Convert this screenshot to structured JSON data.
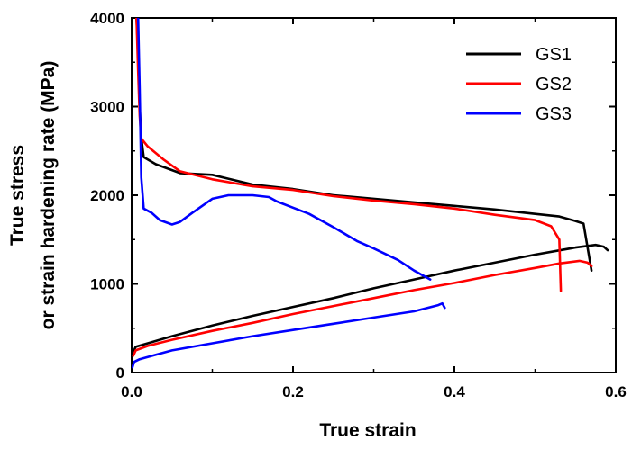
{
  "chart_data": {
    "type": "line",
    "xlabel": "True strain",
    "ylabel_line1": "True stress",
    "ylabel_line2": "or strain hardening rate (MPa)",
    "xlim": [
      0.0,
      0.6
    ],
    "ylim": [
      0,
      4000
    ],
    "x_ticks": [
      "0.0",
      "0.2",
      "0.4",
      "0.6"
    ],
    "y_ticks": [
      "0",
      "1000",
      "2000",
      "3000",
      "4000"
    ],
    "x_tick_values": [
      0.0,
      0.2,
      0.4,
      0.6
    ],
    "y_tick_values": [
      0,
      1000,
      2000,
      3000,
      4000
    ],
    "grid": false,
    "legend_position": "top-right",
    "series": [
      {
        "name": "GS1",
        "color": "#000000",
        "stress_curve": [
          [
            0.002,
            230
          ],
          [
            0.005,
            290
          ],
          [
            0.02,
            330
          ],
          [
            0.05,
            410
          ],
          [
            0.1,
            530
          ],
          [
            0.15,
            640
          ],
          [
            0.2,
            740
          ],
          [
            0.25,
            840
          ],
          [
            0.3,
            950
          ],
          [
            0.35,
            1050
          ],
          [
            0.4,
            1150
          ],
          [
            0.45,
            1240
          ],
          [
            0.5,
            1330
          ],
          [
            0.55,
            1410
          ],
          [
            0.575,
            1440
          ],
          [
            0.585,
            1420
          ],
          [
            0.59,
            1380
          ]
        ],
        "hardening_curve": [
          [
            0.006,
            4000
          ],
          [
            0.008,
            3600
          ],
          [
            0.01,
            3000
          ],
          [
            0.012,
            2650
          ],
          [
            0.015,
            2430
          ],
          [
            0.03,
            2350
          ],
          [
            0.06,
            2250
          ],
          [
            0.1,
            2230
          ],
          [
            0.15,
            2120
          ],
          [
            0.2,
            2070
          ],
          [
            0.25,
            2000
          ],
          [
            0.3,
            1960
          ],
          [
            0.35,
            1920
          ],
          [
            0.4,
            1880
          ],
          [
            0.45,
            1840
          ],
          [
            0.5,
            1790
          ],
          [
            0.53,
            1760
          ],
          [
            0.55,
            1710
          ],
          [
            0.56,
            1680
          ],
          [
            0.57,
            1150
          ]
        ]
      },
      {
        "name": "GS2",
        "color": "#ff0000",
        "stress_curve": [
          [
            0.002,
            190
          ],
          [
            0.005,
            250
          ],
          [
            0.02,
            300
          ],
          [
            0.05,
            370
          ],
          [
            0.1,
            470
          ],
          [
            0.15,
            560
          ],
          [
            0.2,
            660
          ],
          [
            0.25,
            750
          ],
          [
            0.3,
            840
          ],
          [
            0.35,
            930
          ],
          [
            0.4,
            1010
          ],
          [
            0.45,
            1100
          ],
          [
            0.5,
            1180
          ],
          [
            0.53,
            1230
          ],
          [
            0.555,
            1260
          ],
          [
            0.565,
            1240
          ],
          [
            0.57,
            1200
          ]
        ],
        "hardening_curve": [
          [
            0.006,
            4000
          ],
          [
            0.008,
            3400
          ],
          [
            0.01,
            2900
          ],
          [
            0.012,
            2640
          ],
          [
            0.02,
            2550
          ],
          [
            0.04,
            2400
          ],
          [
            0.06,
            2270
          ],
          [
            0.1,
            2180
          ],
          [
            0.15,
            2100
          ],
          [
            0.2,
            2060
          ],
          [
            0.25,
            1990
          ],
          [
            0.3,
            1940
          ],
          [
            0.35,
            1900
          ],
          [
            0.4,
            1850
          ],
          [
            0.45,
            1780
          ],
          [
            0.5,
            1720
          ],
          [
            0.52,
            1650
          ],
          [
            0.53,
            1500
          ],
          [
            0.532,
            920
          ]
        ]
      },
      {
        "name": "GS3",
        "color": "#0000ff",
        "stress_curve": [
          [
            0.001,
            60
          ],
          [
            0.003,
            120
          ],
          [
            0.01,
            150
          ],
          [
            0.03,
            200
          ],
          [
            0.05,
            250
          ],
          [
            0.1,
            330
          ],
          [
            0.15,
            410
          ],
          [
            0.2,
            480
          ],
          [
            0.25,
            550
          ],
          [
            0.3,
            620
          ],
          [
            0.35,
            690
          ],
          [
            0.38,
            760
          ],
          [
            0.385,
            780
          ],
          [
            0.388,
            730
          ]
        ],
        "hardening_curve": [
          [
            0.008,
            4000
          ],
          [
            0.01,
            3200
          ],
          [
            0.012,
            2200
          ],
          [
            0.015,
            1850
          ],
          [
            0.025,
            1800
          ],
          [
            0.035,
            1720
          ],
          [
            0.05,
            1670
          ],
          [
            0.06,
            1700
          ],
          [
            0.075,
            1800
          ],
          [
            0.1,
            1960
          ],
          [
            0.12,
            2000
          ],
          [
            0.15,
            2000
          ],
          [
            0.17,
            1980
          ],
          [
            0.18,
            1930
          ],
          [
            0.2,
            1860
          ],
          [
            0.22,
            1790
          ],
          [
            0.25,
            1640
          ],
          [
            0.28,
            1480
          ],
          [
            0.3,
            1400
          ],
          [
            0.33,
            1270
          ],
          [
            0.35,
            1150
          ],
          [
            0.37,
            1050
          ]
        ]
      }
    ]
  }
}
